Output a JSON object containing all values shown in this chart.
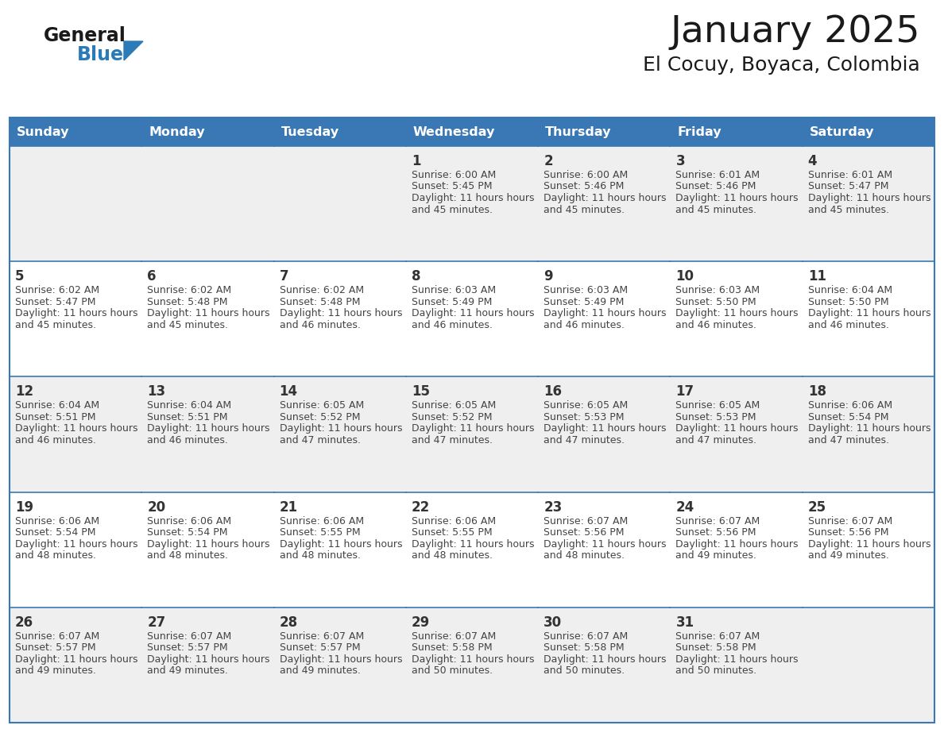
{
  "title": "January 2025",
  "subtitle": "El Cocuy, Boyaca, Colombia",
  "header_bg": "#3A78B5",
  "header_text_color": "#FFFFFF",
  "header_days": [
    "Sunday",
    "Monday",
    "Tuesday",
    "Wednesday",
    "Thursday",
    "Friday",
    "Saturday"
  ],
  "cell_bg_odd": "#EFEFEF",
  "cell_bg_even": "#FFFFFF",
  "cell_border_color": "#3A78B5",
  "day_number_color": "#333333",
  "text_color": "#444444",
  "title_color": "#1a1a1a",
  "logo_general_color": "#1a1a1a",
  "logo_blue_color": "#2B7BB9",
  "logo_triangle_color": "#2B7BB9",
  "calendar_data": [
    [
      null,
      null,
      null,
      {
        "day": 1,
        "sunrise": "6:00 AM",
        "sunset": "5:45 PM",
        "daylight": "11 hours and 45 minutes."
      },
      {
        "day": 2,
        "sunrise": "6:00 AM",
        "sunset": "5:46 PM",
        "daylight": "11 hours and 45 minutes."
      },
      {
        "day": 3,
        "sunrise": "6:01 AM",
        "sunset": "5:46 PM",
        "daylight": "11 hours and 45 minutes."
      },
      {
        "day": 4,
        "sunrise": "6:01 AM",
        "sunset": "5:47 PM",
        "daylight": "11 hours and 45 minutes."
      }
    ],
    [
      {
        "day": 5,
        "sunrise": "6:02 AM",
        "sunset": "5:47 PM",
        "daylight": "11 hours and 45 minutes."
      },
      {
        "day": 6,
        "sunrise": "6:02 AM",
        "sunset": "5:48 PM",
        "daylight": "11 hours and 45 minutes."
      },
      {
        "day": 7,
        "sunrise": "6:02 AM",
        "sunset": "5:48 PM",
        "daylight": "11 hours and 46 minutes."
      },
      {
        "day": 8,
        "sunrise": "6:03 AM",
        "sunset": "5:49 PM",
        "daylight": "11 hours and 46 minutes."
      },
      {
        "day": 9,
        "sunrise": "6:03 AM",
        "sunset": "5:49 PM",
        "daylight": "11 hours and 46 minutes."
      },
      {
        "day": 10,
        "sunrise": "6:03 AM",
        "sunset": "5:50 PM",
        "daylight": "11 hours and 46 minutes."
      },
      {
        "day": 11,
        "sunrise": "6:04 AM",
        "sunset": "5:50 PM",
        "daylight": "11 hours and 46 minutes."
      }
    ],
    [
      {
        "day": 12,
        "sunrise": "6:04 AM",
        "sunset": "5:51 PM",
        "daylight": "11 hours and 46 minutes."
      },
      {
        "day": 13,
        "sunrise": "6:04 AM",
        "sunset": "5:51 PM",
        "daylight": "11 hours and 46 minutes."
      },
      {
        "day": 14,
        "sunrise": "6:05 AM",
        "sunset": "5:52 PM",
        "daylight": "11 hours and 47 minutes."
      },
      {
        "day": 15,
        "sunrise": "6:05 AM",
        "sunset": "5:52 PM",
        "daylight": "11 hours and 47 minutes."
      },
      {
        "day": 16,
        "sunrise": "6:05 AM",
        "sunset": "5:53 PM",
        "daylight": "11 hours and 47 minutes."
      },
      {
        "day": 17,
        "sunrise": "6:05 AM",
        "sunset": "5:53 PM",
        "daylight": "11 hours and 47 minutes."
      },
      {
        "day": 18,
        "sunrise": "6:06 AM",
        "sunset": "5:54 PM",
        "daylight": "11 hours and 47 minutes."
      }
    ],
    [
      {
        "day": 19,
        "sunrise": "6:06 AM",
        "sunset": "5:54 PM",
        "daylight": "11 hours and 48 minutes."
      },
      {
        "day": 20,
        "sunrise": "6:06 AM",
        "sunset": "5:54 PM",
        "daylight": "11 hours and 48 minutes."
      },
      {
        "day": 21,
        "sunrise": "6:06 AM",
        "sunset": "5:55 PM",
        "daylight": "11 hours and 48 minutes."
      },
      {
        "day": 22,
        "sunrise": "6:06 AM",
        "sunset": "5:55 PM",
        "daylight": "11 hours and 48 minutes."
      },
      {
        "day": 23,
        "sunrise": "6:07 AM",
        "sunset": "5:56 PM",
        "daylight": "11 hours and 48 minutes."
      },
      {
        "day": 24,
        "sunrise": "6:07 AM",
        "sunset": "5:56 PM",
        "daylight": "11 hours and 49 minutes."
      },
      {
        "day": 25,
        "sunrise": "6:07 AM",
        "sunset": "5:56 PM",
        "daylight": "11 hours and 49 minutes."
      }
    ],
    [
      {
        "day": 26,
        "sunrise": "6:07 AM",
        "sunset": "5:57 PM",
        "daylight": "11 hours and 49 minutes."
      },
      {
        "day": 27,
        "sunrise": "6:07 AM",
        "sunset": "5:57 PM",
        "daylight": "11 hours and 49 minutes."
      },
      {
        "day": 28,
        "sunrise": "6:07 AM",
        "sunset": "5:57 PM",
        "daylight": "11 hours and 49 minutes."
      },
      {
        "day": 29,
        "sunrise": "6:07 AM",
        "sunset": "5:58 PM",
        "daylight": "11 hours and 50 minutes."
      },
      {
        "day": 30,
        "sunrise": "6:07 AM",
        "sunset": "5:58 PM",
        "daylight": "11 hours and 50 minutes."
      },
      {
        "day": 31,
        "sunrise": "6:07 AM",
        "sunset": "5:58 PM",
        "daylight": "11 hours and 50 minutes."
      },
      null
    ]
  ]
}
